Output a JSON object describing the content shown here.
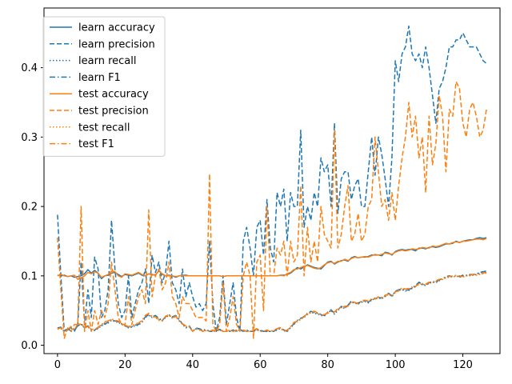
{
  "chart_data": {
    "type": "line",
    "title": "",
    "xlabel": "",
    "ylabel": "",
    "xlim": [
      -4,
      131
    ],
    "ylim": [
      -0.012,
      0.486
    ],
    "xticks": [
      0,
      20,
      40,
      60,
      80,
      100,
      120
    ],
    "yticks": [
      0.0,
      0.1,
      0.2,
      0.3,
      0.4
    ],
    "ytick_labels": [
      "0.0",
      "0.1",
      "0.2",
      "0.3",
      "0.4"
    ],
    "legend_position": "upper-left",
    "colors": {
      "learn": "#1f77b4",
      "test": "#ff7f0e"
    },
    "styles": {
      "accuracy": "solid",
      "precision": "dashed",
      "recall": "dotted",
      "F1": "dashdot"
    },
    "x": [
      0,
      1,
      2,
      3,
      4,
      5,
      6,
      7,
      8,
      9,
      10,
      11,
      12,
      13,
      14,
      15,
      16,
      17,
      18,
      19,
      20,
      21,
      22,
      23,
      24,
      25,
      26,
      27,
      28,
      29,
      30,
      31,
      32,
      33,
      34,
      35,
      36,
      37,
      38,
      39,
      40,
      41,
      42,
      43,
      44,
      45,
      46,
      47,
      48,
      49,
      50,
      51,
      52,
      53,
      54,
      55,
      56,
      57,
      58,
      59,
      60,
      61,
      62,
      63,
      64,
      65,
      66,
      67,
      68,
      69,
      70,
      71,
      72,
      73,
      74,
      75,
      76,
      77,
      78,
      79,
      80,
      81,
      82,
      83,
      84,
      85,
      86,
      87,
      88,
      89,
      90,
      91,
      92,
      93,
      94,
      95,
      96,
      97,
      98,
      99,
      100,
      101,
      102,
      103,
      104,
      105,
      106,
      107,
      108,
      109,
      110,
      111,
      112,
      113,
      114,
      115,
      116,
      117,
      118,
      119,
      120,
      121,
      122,
      123,
      124,
      125,
      126,
      127
    ],
    "series": [
      {
        "name": "learn accuracy",
        "group": "learn",
        "style": "solid",
        "values": [
          0.101,
          0.1,
          0.101,
          0.099,
          0.1,
          0.098,
          0.099,
          0.1,
          0.103,
          0.109,
          0.104,
          0.108,
          0.104,
          0.096,
          0.1,
          0.101,
          0.104,
          0.105,
          0.102,
          0.099,
          0.102,
          0.101,
          0.1,
          0.102,
          0.104,
          0.101,
          0.1,
          0.103,
          0.102,
          0.101,
          0.108,
          0.102,
          0.1,
          0.101,
          0.1,
          0.098,
          0.1,
          0.101,
          0.101,
          0.1,
          0.1,
          0.1,
          0.1,
          0.1,
          0.1,
          0.1,
          0.1,
          0.1,
          0.1,
          0.099,
          0.1,
          0.1,
          0.1,
          0.1,
          0.1,
          0.1,
          0.1,
          0.1,
          0.1,
          0.1,
          0.1,
          0.1,
          0.1,
          0.1,
          0.1,
          0.1,
          0.101,
          0.101,
          0.102,
          0.104,
          0.108,
          0.112,
          0.11,
          0.113,
          0.116,
          0.114,
          0.112,
          0.111,
          0.11,
          0.115,
          0.12,
          0.121,
          0.117,
          0.12,
          0.122,
          0.123,
          0.121,
          0.126,
          0.128,
          0.126,
          0.127,
          0.127,
          0.128,
          0.13,
          0.13,
          0.13,
          0.129,
          0.134,
          0.133,
          0.13,
          0.135,
          0.137,
          0.138,
          0.137,
          0.138,
          0.138,
          0.136,
          0.14,
          0.14,
          0.139,
          0.141,
          0.142,
          0.141,
          0.142,
          0.144,
          0.146,
          0.146,
          0.147,
          0.15,
          0.148,
          0.15,
          0.151,
          0.152,
          0.152,
          0.154,
          0.155,
          0.154,
          0.155
        ]
      },
      {
        "name": "learn precision",
        "group": "learn",
        "style": "dashed",
        "values": [
          0.188,
          0.1,
          0.02,
          0.025,
          0.02,
          0.02,
          0.03,
          0.12,
          0.03,
          0.08,
          0.04,
          0.127,
          0.11,
          0.04,
          0.05,
          0.08,
          0.18,
          0.11,
          0.06,
          0.04,
          0.05,
          0.1,
          0.04,
          0.06,
          0.08,
          0.09,
          0.11,
          0.06,
          0.13,
          0.105,
          0.12,
          0.09,
          0.105,
          0.15,
          0.09,
          0.08,
          0.06,
          0.11,
          0.07,
          0.09,
          0.07,
          0.055,
          0.06,
          0.05,
          0.06,
          0.15,
          0.06,
          0.02,
          0.04,
          0.1,
          0.03,
          0.06,
          0.09,
          0.04,
          0.02,
          0.15,
          0.17,
          0.14,
          0.1,
          0.17,
          0.18,
          0.13,
          0.21,
          0.14,
          0.12,
          0.22,
          0.2,
          0.225,
          0.15,
          0.22,
          0.2,
          0.2,
          0.31,
          0.17,
          0.2,
          0.18,
          0.22,
          0.2,
          0.27,
          0.25,
          0.26,
          0.2,
          0.32,
          0.19,
          0.24,
          0.25,
          0.25,
          0.21,
          0.23,
          0.24,
          0.2,
          0.2,
          0.25,
          0.3,
          0.245,
          0.3,
          0.275,
          0.24,
          0.2,
          0.27,
          0.41,
          0.38,
          0.42,
          0.43,
          0.46,
          0.42,
          0.41,
          0.42,
          0.4,
          0.43,
          0.4,
          0.36,
          0.32,
          0.37,
          0.38,
          0.4,
          0.43,
          0.43,
          0.44,
          0.44,
          0.45,
          0.44,
          0.43,
          0.43,
          0.43,
          0.42,
          0.41,
          0.406
        ]
      },
      {
        "name": "learn recall",
        "group": "learn",
        "style": "dotted",
        "values": [
          0.024,
          0.025,
          0.02,
          0.021,
          0.025,
          0.022,
          0.028,
          0.03,
          0.025,
          0.027,
          0.023,
          0.021,
          0.024,
          0.028,
          0.03,
          0.032,
          0.036,
          0.034,
          0.033,
          0.03,
          0.028,
          0.025,
          0.026,
          0.028,
          0.029,
          0.033,
          0.04,
          0.043,
          0.04,
          0.042,
          0.038,
          0.035,
          0.04,
          0.043,
          0.04,
          0.042,
          0.036,
          0.03,
          0.025,
          0.027,
          0.02,
          0.024,
          0.023,
          0.021,
          0.022,
          0.02,
          0.02,
          0.021,
          0.022,
          0.02,
          0.02,
          0.02,
          0.021,
          0.02,
          0.022,
          0.02,
          0.021,
          0.02,
          0.02,
          0.022,
          0.021,
          0.02,
          0.02,
          0.02,
          0.02,
          0.022,
          0.024,
          0.021,
          0.02,
          0.025,
          0.03,
          0.035,
          0.038,
          0.04,
          0.045,
          0.048,
          0.046,
          0.045,
          0.043,
          0.042,
          0.047,
          0.05,
          0.045,
          0.05,
          0.055,
          0.053,
          0.057,
          0.063,
          0.06,
          0.06,
          0.062,
          0.063,
          0.061,
          0.065,
          0.067,
          0.068,
          0.067,
          0.07,
          0.074,
          0.07,
          0.077,
          0.079,
          0.08,
          0.078,
          0.079,
          0.082,
          0.085,
          0.09,
          0.087,
          0.086,
          0.089,
          0.091,
          0.09,
          0.093,
          0.095,
          0.098,
          0.099,
          0.098,
          0.1,
          0.098,
          0.1,
          0.1,
          0.101,
          0.101,
          0.102,
          0.104,
          0.105,
          0.106
        ]
      },
      {
        "name": "learn F1",
        "group": "learn",
        "style": "dashdot",
        "values": [
          0.025,
          0.026,
          0.02,
          0.022,
          0.026,
          0.022,
          0.028,
          0.031,
          0.026,
          0.028,
          0.023,
          0.022,
          0.025,
          0.029,
          0.031,
          0.033,
          0.037,
          0.035,
          0.034,
          0.031,
          0.028,
          0.026,
          0.027,
          0.029,
          0.03,
          0.034,
          0.041,
          0.044,
          0.041,
          0.043,
          0.039,
          0.036,
          0.041,
          0.044,
          0.041,
          0.043,
          0.037,
          0.031,
          0.026,
          0.028,
          0.02,
          0.025,
          0.024,
          0.022,
          0.023,
          0.02,
          0.02,
          0.022,
          0.023,
          0.02,
          0.02,
          0.02,
          0.022,
          0.02,
          0.023,
          0.02,
          0.022,
          0.02,
          0.02,
          0.023,
          0.022,
          0.02,
          0.02,
          0.02,
          0.02,
          0.023,
          0.025,
          0.022,
          0.02,
          0.026,
          0.031,
          0.036,
          0.039,
          0.041,
          0.046,
          0.049,
          0.047,
          0.046,
          0.044,
          0.043,
          0.048,
          0.051,
          0.046,
          0.051,
          0.056,
          0.054,
          0.058,
          0.064,
          0.061,
          0.061,
          0.063,
          0.064,
          0.062,
          0.066,
          0.068,
          0.069,
          0.068,
          0.071,
          0.075,
          0.071,
          0.078,
          0.08,
          0.081,
          0.079,
          0.08,
          0.083,
          0.086,
          0.091,
          0.088,
          0.087,
          0.09,
          0.092,
          0.091,
          0.094,
          0.096,
          0.099,
          0.1,
          0.099,
          0.101,
          0.099,
          0.101,
          0.101,
          0.102,
          0.102,
          0.103,
          0.105,
          0.106,
          0.107
        ]
      },
      {
        "name": "test accuracy",
        "group": "test",
        "style": "solid",
        "values": [
          0.1,
          0.102,
          0.1,
          0.099,
          0.1,
          0.101,
          0.095,
          0.097,
          0.1,
          0.105,
          0.103,
          0.106,
          0.104,
          0.098,
          0.1,
          0.102,
          0.107,
          0.106,
          0.1,
          0.098,
          0.103,
          0.102,
          0.101,
          0.103,
          0.105,
          0.102,
          0.1,
          0.103,
          0.101,
          0.102,
          0.107,
          0.103,
          0.1,
          0.1,
          0.1,
          0.099,
          0.1,
          0.101,
          0.1,
          0.1,
          0.1,
          0.1,
          0.1,
          0.1,
          0.1,
          0.1,
          0.1,
          0.1,
          0.1,
          0.099,
          0.1,
          0.1,
          0.1,
          0.1,
          0.1,
          0.1,
          0.1,
          0.1,
          0.1,
          0.1,
          0.1,
          0.1,
          0.1,
          0.1,
          0.1,
          0.1,
          0.101,
          0.1,
          0.103,
          0.105,
          0.109,
          0.11,
          0.112,
          0.114,
          0.115,
          0.113,
          0.111,
          0.11,
          0.112,
          0.116,
          0.119,
          0.12,
          0.118,
          0.121,
          0.121,
          0.124,
          0.122,
          0.125,
          0.127,
          0.126,
          0.127,
          0.128,
          0.127,
          0.129,
          0.131,
          0.13,
          0.131,
          0.133,
          0.132,
          0.131,
          0.134,
          0.136,
          0.137,
          0.136,
          0.137,
          0.139,
          0.138,
          0.139,
          0.141,
          0.14,
          0.14,
          0.143,
          0.142,
          0.143,
          0.145,
          0.147,
          0.146,
          0.148,
          0.149,
          0.148,
          0.15,
          0.15,
          0.151,
          0.152,
          0.153,
          0.153,
          0.152,
          0.154
        ]
      },
      {
        "name": "test precision",
        "group": "test",
        "style": "dashed",
        "values": [
          0.155,
          0.08,
          0.01,
          0.025,
          0.02,
          0.03,
          0.03,
          0.2,
          0.02,
          0.05,
          0.02,
          0.05,
          0.03,
          0.05,
          0.04,
          0.06,
          0.12,
          0.08,
          0.04,
          0.03,
          0.03,
          0.07,
          0.03,
          0.05,
          0.07,
          0.08,
          0.06,
          0.195,
          0.07,
          0.1,
          0.11,
          0.08,
          0.09,
          0.12,
          0.07,
          0.06,
          0.04,
          0.07,
          0.06,
          0.06,
          0.05,
          0.04,
          0.04,
          0.04,
          0.035,
          0.247,
          0.03,
          0.02,
          0.03,
          0.09,
          0.02,
          0.04,
          0.07,
          0.03,
          0.02,
          0.1,
          0.12,
          0.1,
          0.01,
          0.12,
          0.13,
          0.05,
          0.2,
          0.1,
          0.1,
          0.14,
          0.13,
          0.15,
          0.1,
          0.15,
          0.12,
          0.13,
          0.23,
          0.1,
          0.17,
          0.12,
          0.15,
          0.12,
          0.2,
          0.16,
          0.15,
          0.14,
          0.31,
          0.14,
          0.16,
          0.2,
          0.23,
          0.15,
          0.16,
          0.19,
          0.15,
          0.16,
          0.2,
          0.21,
          0.3,
          0.25,
          0.2,
          0.21,
          0.18,
          0.22,
          0.18,
          0.23,
          0.27,
          0.3,
          0.35,
          0.3,
          0.33,
          0.27,
          0.3,
          0.22,
          0.33,
          0.26,
          0.29,
          0.36,
          0.33,
          0.25,
          0.34,
          0.33,
          0.38,
          0.37,
          0.32,
          0.3,
          0.34,
          0.35,
          0.33,
          0.3,
          0.31,
          0.34
        ]
      },
      {
        "name": "test recall",
        "group": "test",
        "style": "dotted",
        "values": [
          0.023,
          0.024,
          0.02,
          0.022,
          0.027,
          0.023,
          0.03,
          0.03,
          0.025,
          0.026,
          0.022,
          0.022,
          0.025,
          0.029,
          0.033,
          0.034,
          0.037,
          0.035,
          0.034,
          0.03,
          0.028,
          0.026,
          0.027,
          0.03,
          0.031,
          0.035,
          0.042,
          0.045,
          0.041,
          0.04,
          0.036,
          0.035,
          0.041,
          0.043,
          0.039,
          0.041,
          0.035,
          0.03,
          0.027,
          0.026,
          0.02,
          0.023,
          0.022,
          0.02,
          0.021,
          0.02,
          0.021,
          0.02,
          0.022,
          0.02,
          0.02,
          0.021,
          0.02,
          0.021,
          0.022,
          0.021,
          0.02,
          0.02,
          0.021,
          0.023,
          0.02,
          0.02,
          0.021,
          0.02,
          0.021,
          0.023,
          0.025,
          0.02,
          0.021,
          0.026,
          0.032,
          0.034,
          0.037,
          0.041,
          0.044,
          0.047,
          0.048,
          0.046,
          0.044,
          0.043,
          0.046,
          0.049,
          0.047,
          0.052,
          0.054,
          0.055,
          0.056,
          0.062,
          0.061,
          0.059,
          0.063,
          0.064,
          0.063,
          0.066,
          0.066,
          0.069,
          0.068,
          0.071,
          0.073,
          0.071,
          0.076,
          0.078,
          0.082,
          0.08,
          0.081,
          0.083,
          0.084,
          0.088,
          0.088,
          0.087,
          0.09,
          0.09,
          0.092,
          0.094,
          0.095,
          0.097,
          0.098,
          0.099,
          0.099,
          0.099,
          0.098,
          0.1,
          0.1,
          0.101,
          0.101,
          0.102,
          0.103,
          0.104
        ]
      },
      {
        "name": "test F1",
        "group": "test",
        "style": "dashdot",
        "values": [
          0.024,
          0.025,
          0.02,
          0.023,
          0.027,
          0.024,
          0.03,
          0.031,
          0.026,
          0.027,
          0.023,
          0.023,
          0.026,
          0.03,
          0.034,
          0.035,
          0.038,
          0.036,
          0.035,
          0.031,
          0.029,
          0.027,
          0.028,
          0.031,
          0.032,
          0.036,
          0.043,
          0.046,
          0.042,
          0.041,
          0.037,
          0.036,
          0.042,
          0.044,
          0.04,
          0.042,
          0.036,
          0.031,
          0.028,
          0.027,
          0.02,
          0.024,
          0.023,
          0.02,
          0.022,
          0.02,
          0.022,
          0.02,
          0.023,
          0.02,
          0.02,
          0.022,
          0.02,
          0.022,
          0.023,
          0.022,
          0.02,
          0.02,
          0.022,
          0.024,
          0.02,
          0.02,
          0.022,
          0.02,
          0.022,
          0.024,
          0.026,
          0.02,
          0.022,
          0.027,
          0.033,
          0.035,
          0.038,
          0.042,
          0.045,
          0.048,
          0.049,
          0.047,
          0.045,
          0.044,
          0.047,
          0.05,
          0.048,
          0.053,
          0.055,
          0.056,
          0.057,
          0.063,
          0.062,
          0.06,
          0.064,
          0.065,
          0.064,
          0.067,
          0.067,
          0.07,
          0.069,
          0.072,
          0.074,
          0.072,
          0.077,
          0.079,
          0.083,
          0.081,
          0.082,
          0.084,
          0.085,
          0.089,
          0.089,
          0.088,
          0.091,
          0.091,
          0.093,
          0.095,
          0.096,
          0.098,
          0.099,
          0.1,
          0.1,
          0.1,
          0.099,
          0.101,
          0.101,
          0.102,
          0.102,
          0.103,
          0.104,
          0.105
        ]
      }
    ]
  }
}
